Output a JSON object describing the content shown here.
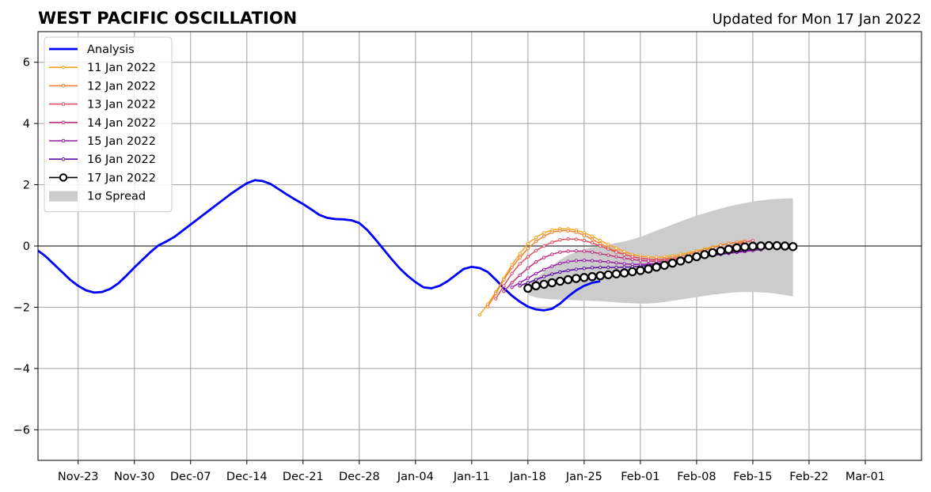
{
  "chart_data": {
    "type": "line",
    "title": "WEST PACIFIC OSCILLATION",
    "subtitle": "Updated for Mon 17 Jan 2022",
    "xlabel": "",
    "ylabel": "",
    "x_ticks": [
      "Nov-23",
      "Nov-30",
      "Dec-07",
      "Dec-14",
      "Dec-21",
      "Dec-28",
      "Jan-04",
      "Jan-11",
      "Jan-18",
      "Jan-25",
      "Feb-01",
      "Feb-08",
      "Feb-15",
      "Feb-22",
      "Mar-01"
    ],
    "x_tick_dates": [
      "2021-11-23",
      "2021-11-30",
      "2021-12-07",
      "2021-12-14",
      "2021-12-21",
      "2021-12-28",
      "2022-01-04",
      "2022-01-11",
      "2022-01-18",
      "2022-01-25",
      "2022-02-01",
      "2022-02-08",
      "2022-02-15",
      "2022-02-22",
      "2022-03-01"
    ],
    "xlim": [
      "2021-11-18",
      "2022-03-08"
    ],
    "ylim": [
      -7,
      7
    ],
    "y_ticks": [
      -6,
      -4,
      -2,
      0,
      2,
      4,
      6
    ],
    "grid": true,
    "zero_line": true,
    "legend_position": "top-left",
    "analysis": {
      "name": "Analysis",
      "color": "#0000ff",
      "start_date": "2021-11-18",
      "values": [
        -0.15,
        -0.35,
        -0.6,
        -0.85,
        -1.1,
        -1.3,
        -1.45,
        -1.52,
        -1.5,
        -1.4,
        -1.22,
        -0.97,
        -0.7,
        -0.45,
        -0.2,
        0.02,
        0.15,
        0.3,
        0.5,
        0.7,
        0.9,
        1.1,
        1.3,
        1.5,
        1.7,
        1.88,
        2.05,
        2.15,
        2.12,
        2.02,
        1.85,
        1.68,
        1.52,
        1.37,
        1.2,
        1.02,
        0.92,
        0.88,
        0.87,
        0.84,
        0.75,
        0.52,
        0.22,
        -0.1,
        -0.42,
        -0.72,
        -0.97,
        -1.18,
        -1.35,
        -1.38,
        -1.3,
        -1.15,
        -0.95,
        -0.75,
        -0.68,
        -0.72,
        -0.85,
        -1.1,
        -1.38,
        -1.62,
        -1.82,
        -1.98,
        -2.07,
        -2.1,
        -2.05,
        -1.88,
        -1.65,
        -1.45,
        -1.3,
        -1.2,
        -1.15
      ]
    },
    "forecasts": [
      {
        "name": "11 Jan 2022",
        "color": "#f5a623",
        "start_date": "2022-01-12",
        "values": [
          -2.25,
          -1.9,
          -1.5,
          -1.05,
          -0.62,
          -0.25,
          0.08,
          0.28,
          0.43,
          0.52,
          0.56,
          0.56,
          0.52,
          0.43,
          0.32,
          0.18,
          0.05,
          -0.07,
          -0.18,
          -0.28,
          -0.33,
          -0.36,
          -0.37,
          -0.35,
          -0.32,
          -0.27,
          -0.22,
          -0.16,
          -0.09,
          -0.03,
          0.03,
          0.08,
          0.12,
          0.14
        ]
      },
      {
        "name": "12 Jan 2022",
        "color": "#f08030",
        "start_date": "2022-01-13",
        "values": [
          -1.98,
          -1.55,
          -1.1,
          -0.7,
          -0.38,
          -0.08,
          0.15,
          0.32,
          0.45,
          0.5,
          0.5,
          0.45,
          0.35,
          0.22,
          0.08,
          -0.05,
          -0.17,
          -0.27,
          -0.35,
          -0.4,
          -0.43,
          -0.44,
          -0.42,
          -0.38,
          -0.33,
          -0.27,
          -0.2,
          -0.13,
          -0.06,
          0.02,
          0.08,
          0.13,
          0.17
        ]
      },
      {
        "name": "13 Jan 2022",
        "color": "#e05060",
        "start_date": "2022-01-14",
        "values": [
          -1.72,
          -1.3,
          -0.9,
          -0.58,
          -0.35,
          -0.15,
          0.0,
          0.12,
          0.2,
          0.23,
          0.22,
          0.18,
          0.1,
          0.0,
          -0.1,
          -0.2,
          -0.28,
          -0.35,
          -0.4,
          -0.43,
          -0.45,
          -0.45,
          -0.43,
          -0.4,
          -0.35,
          -0.3,
          -0.24,
          -0.17,
          -0.1,
          -0.02,
          0.06,
          0.12,
          0.18
        ]
      },
      {
        "name": "14 Jan 2022",
        "color": "#c0307a",
        "start_date": "2022-01-15",
        "values": [
          -1.48,
          -1.2,
          -0.95,
          -0.72,
          -0.52,
          -0.38,
          -0.27,
          -0.2,
          -0.17,
          -0.16,
          -0.17,
          -0.2,
          -0.25,
          -0.3,
          -0.35,
          -0.4,
          -0.44,
          -0.47,
          -0.49,
          -0.5,
          -0.5,
          -0.49,
          -0.47,
          -0.44,
          -0.4,
          -0.35,
          -0.3,
          -0.25,
          -0.2,
          -0.15,
          -0.1,
          -0.05,
          0.0
        ]
      },
      {
        "name": "15 Jan 2022",
        "color": "#9a1aa8",
        "start_date": "2022-01-16",
        "values": [
          -1.35,
          -1.2,
          -1.05,
          -0.9,
          -0.77,
          -0.66,
          -0.57,
          -0.51,
          -0.48,
          -0.47,
          -0.48,
          -0.5,
          -0.52,
          -0.55,
          -0.58,
          -0.6,
          -0.6,
          -0.59,
          -0.57,
          -0.54,
          -0.5,
          -0.46,
          -0.42,
          -0.38,
          -0.34,
          -0.3,
          -0.27,
          -0.24,
          -0.21,
          -0.18,
          -0.15,
          -0.12
        ]
      },
      {
        "name": "16 Jan 2022",
        "color": "#5a0aa0",
        "start_date": "2022-01-17",
        "values": [
          -1.3,
          -1.2,
          -1.1,
          -1.0,
          -0.92,
          -0.85,
          -0.8,
          -0.76,
          -0.73,
          -0.71,
          -0.7,
          -0.7,
          -0.7,
          -0.69,
          -0.68,
          -0.66,
          -0.63,
          -0.59,
          -0.55,
          -0.51,
          -0.47,
          -0.43,
          -0.39,
          -0.35,
          -0.31,
          -0.27,
          -0.23,
          -0.19,
          -0.15,
          -0.11,
          -0.08,
          -0.05
        ]
      },
      {
        "name": "17 Jan 2022",
        "color": "#000000",
        "start_date": "2022-01-18",
        "values": [
          -1.38,
          -1.3,
          -1.25,
          -1.2,
          -1.15,
          -1.1,
          -1.06,
          -1.03,
          -1.0,
          -0.97,
          -0.94,
          -0.91,
          -0.88,
          -0.84,
          -0.8,
          -0.75,
          -0.69,
          -0.63,
          -0.56,
          -0.49,
          -0.42,
          -0.35,
          -0.28,
          -0.22,
          -0.16,
          -0.11,
          -0.06,
          -0.03,
          -0.01,
          0.0,
          0.01,
          0.01,
          0.0,
          -0.02
        ]
      }
    ],
    "spread": {
      "name": "1σ Spread",
      "color": "#cccccc",
      "start_date": "2022-01-18",
      "upper": [
        -1.2,
        -1.05,
        -0.85,
        -0.65,
        -0.45,
        -0.3,
        -0.2,
        -0.1,
        -0.04,
        0.0,
        0.05,
        0.1,
        0.15,
        0.22,
        0.3,
        0.4,
        0.5,
        0.6,
        0.7,
        0.8,
        0.9,
        0.99,
        1.07,
        1.15,
        1.22,
        1.29,
        1.35,
        1.4,
        1.45,
        1.49,
        1.52,
        1.54,
        1.55,
        1.56
      ],
      "lower": [
        -1.6,
        -1.68,
        -1.72,
        -1.74,
        -1.75,
        -1.76,
        -1.77,
        -1.78,
        -1.79,
        -1.8,
        -1.82,
        -1.84,
        -1.86,
        -1.87,
        -1.88,
        -1.88,
        -1.86,
        -1.83,
        -1.79,
        -1.75,
        -1.71,
        -1.67,
        -1.63,
        -1.59,
        -1.56,
        -1.53,
        -1.51,
        -1.5,
        -1.5,
        -1.51,
        -1.53,
        -1.56,
        -1.6,
        -1.65
      ]
    }
  }
}
